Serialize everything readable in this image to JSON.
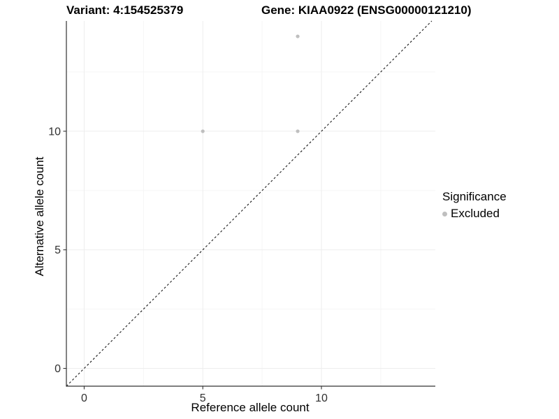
{
  "title": {
    "left": "Variant: 4:154525379",
    "right": "Gene: KIAA0922 (ENSG00000121210)"
  },
  "axes": {
    "x_label": "Reference allele count",
    "y_label": "Alternative allele count"
  },
  "legend": {
    "title": "Significance",
    "items": [
      {
        "label": "Excluded",
        "color": "#bfbfbf"
      }
    ]
  },
  "colors": {
    "background": "#ffffff",
    "axis_line": "#333333",
    "tick_label": "#303030",
    "grid_major": "#ededed",
    "grid_minor": "#f5f5f5",
    "reference_line": "#1a1a1a",
    "point": "#bfbfbf"
  },
  "chart_data": {
    "type": "scatter",
    "title": "Variant: 4:154525379  /  Gene: KIAA0922 (ENSG00000121210)",
    "xlabel": "Reference allele count",
    "ylabel": "Alternative allele count",
    "xlim": [
      -0.75,
      14.8
    ],
    "ylim": [
      -0.75,
      14.65
    ],
    "x_major_ticks": [
      0,
      5,
      10
    ],
    "y_major_ticks": [
      0,
      5,
      10
    ],
    "x_minor_ticks": [
      2.5,
      7.5,
      12.5
    ],
    "y_minor_ticks": [
      2.5,
      7.5,
      12.5
    ],
    "grid": "major and minor gridlines, very light gray, white panel",
    "legend_position": "right",
    "series": [
      {
        "name": "Excluded",
        "color": "#bfbfbf",
        "point_radius": 2.6,
        "points": [
          {
            "x": 9,
            "y": 14
          },
          {
            "x": 5,
            "y": 10
          },
          {
            "x": 9,
            "y": 10
          }
        ]
      }
    ],
    "reference_line": {
      "type": "identity",
      "equation": "y = x",
      "style": "dashed",
      "color": "#1a1a1a"
    }
  }
}
